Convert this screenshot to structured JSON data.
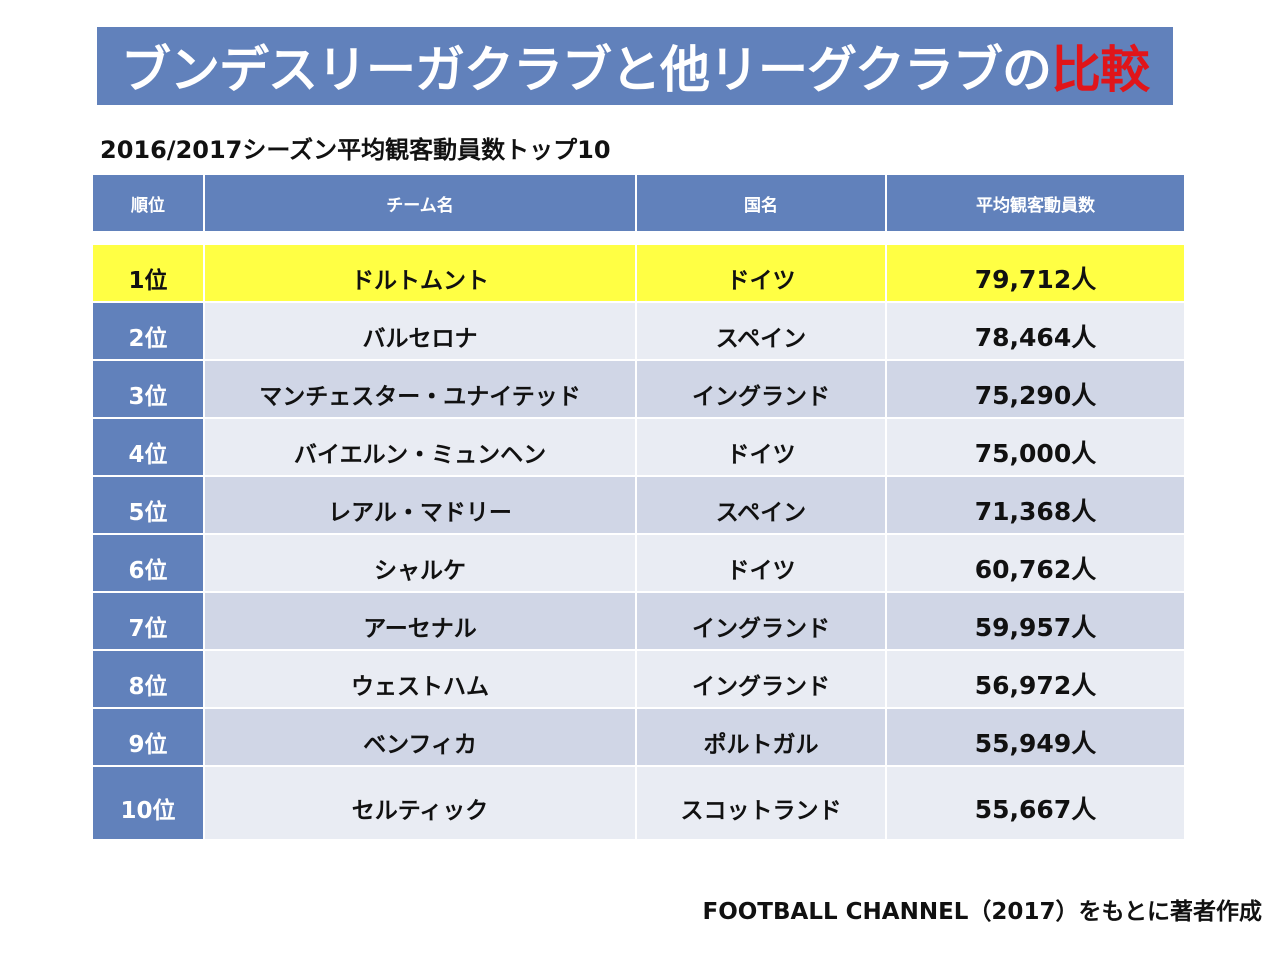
{
  "title": {
    "main": "ブンデスリーガクラブと他リーグクラブの",
    "accent": "比較",
    "accent_color": "#e0151a",
    "bar_color": "#6181bb"
  },
  "subtitle": "2016/2017シーズン平均観客動員数トップ10",
  "table": {
    "headers": [
      "順位",
      "チーム名",
      "国名",
      "平均観客動員数"
    ],
    "highlight_color": "#ffff44",
    "rows": [
      {
        "rank": "1位",
        "team": "ドルトムント",
        "country": "ドイツ",
        "attendance": "79,712人"
      },
      {
        "rank": "2位",
        "team": "バルセロナ",
        "country": "スペイン",
        "attendance": "78,464人"
      },
      {
        "rank": "3位",
        "team": "マンチェスター・ユナイテッド",
        "country": "イングランド",
        "attendance": "75,290人"
      },
      {
        "rank": "4位",
        "team": "バイエルン・ミュンヘン",
        "country": "ドイツ",
        "attendance": "75,000人"
      },
      {
        "rank": "5位",
        "team": "レアル・マドリー",
        "country": "スペイン",
        "attendance": "71,368人"
      },
      {
        "rank": "6位",
        "team": "シャルケ",
        "country": "ドイツ",
        "attendance": "60,762人"
      },
      {
        "rank": "7位",
        "team": "アーセナル",
        "country": "イングランド",
        "attendance": "59,957人"
      },
      {
        "rank": "8位",
        "team": "ウェストハム",
        "country": "イングランド",
        "attendance": "56,972人"
      },
      {
        "rank": "9位",
        "team": "ベンフィカ",
        "country": "ポルトガル",
        "attendance": "55,949人"
      },
      {
        "rank": "10位",
        "team": "セルティック",
        "country": "スコットランド",
        "attendance": "55,667人"
      }
    ]
  },
  "source": "FOOTBALL CHANNEL（2017）をもとに著者作成"
}
